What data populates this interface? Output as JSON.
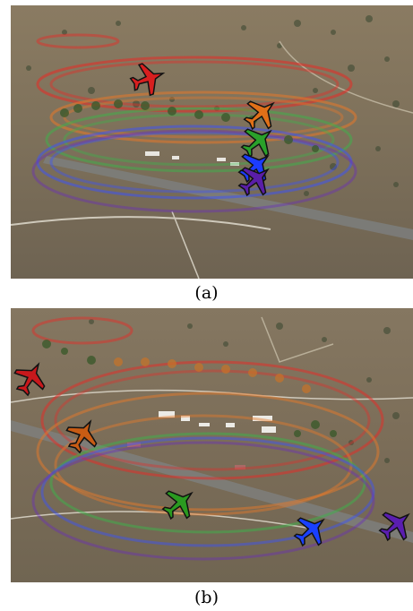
{
  "figure": {
    "panels": [
      {
        "id": "a",
        "caption": "(a)",
        "aircraft": [
          {
            "color": "#d81f1f",
            "icon": "airplane-icon"
          },
          {
            "color": "#e07018",
            "icon": "airplane-icon"
          },
          {
            "color": "#2aa12a",
            "icon": "airplane-icon"
          },
          {
            "color": "#1c3cff",
            "icon": "airplane-icon"
          },
          {
            "color": "#5a1ea8",
            "icon": "airplane-icon"
          }
        ]
      },
      {
        "id": "b",
        "caption": "(b)",
        "aircraft": [
          {
            "color": "#c8181c",
            "icon": "airplane-icon"
          },
          {
            "color": "#c85c14",
            "icon": "airplane-icon"
          },
          {
            "color": "#2a9a20",
            "icon": "airplane-icon"
          },
          {
            "color": "#1a40ff",
            "icon": "airplane-icon"
          },
          {
            "color": "#5a1eb0",
            "icon": "airplane-icon"
          }
        ]
      }
    ]
  }
}
